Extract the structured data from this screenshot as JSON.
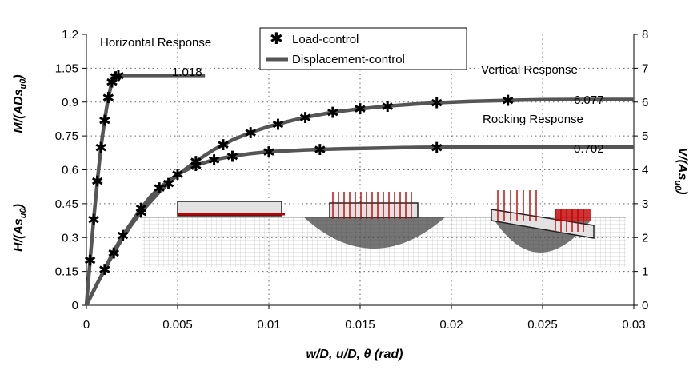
{
  "chart_data": {
    "type": "line",
    "xlabel": "w/D,  u/D,  θ (rad)",
    "ylabel_left_outer": "H/(As_u0)",
    "ylabel_left_inner": "M/(ADs_u0)",
    "ylabel_right": "V/(As_u0)",
    "xlim": [
      0,
      0.03
    ],
    "ylim_left": [
      0,
      1.2
    ],
    "ylim_right": [
      0,
      8
    ],
    "x_ticks": [
      "0",
      "0.005",
      "0.01",
      "0.015",
      "0.02",
      "0.025",
      "0.03"
    ],
    "y_left_ticks": [
      "0",
      "0.15",
      "0.3",
      "0.45",
      "0.6",
      "0.75",
      "0.9",
      "1.05",
      "1.2"
    ],
    "y_right_ticks": [
      "0",
      "1",
      "2",
      "3",
      "4",
      "5",
      "6",
      "7",
      "8"
    ],
    "grid": "dotted",
    "legend_position": "top-center",
    "legend": [
      {
        "label": "Load-control",
        "style": "asterisk"
      },
      {
        "label": "Displacement-control",
        "style": "thick-line"
      }
    ],
    "series": [
      {
        "name": "Horizontal Response",
        "annotation_value": "1.018",
        "axis": "left",
        "x": [
          0,
          0.0002,
          0.0004,
          0.0006,
          0.0008,
          0.001,
          0.0012,
          0.0014,
          0.0016,
          0.00175,
          0.002,
          0.003,
          0.004,
          0.005,
          0.006,
          0.0065
        ],
        "y": [
          0,
          0.2,
          0.38,
          0.55,
          0.7,
          0.82,
          0.92,
          0.99,
          1.012,
          1.018,
          1.018,
          1.018,
          1.018,
          1.018,
          1.018,
          1.018
        ]
      },
      {
        "name": "Vertical Response",
        "annotation_value": "6.077",
        "axis": "right",
        "x": [
          0,
          0.0005,
          0.001,
          0.0015,
          0.002,
          0.0025,
          0.003,
          0.004,
          0.005,
          0.006,
          0.007,
          0.008,
          0.009,
          0.01,
          0.011,
          0.012,
          0.0135,
          0.015,
          0.0165,
          0.018,
          0.0192,
          0.021,
          0.0231,
          0.025,
          0.027,
          0.029,
          0.03
        ],
        "y": [
          0,
          0.55,
          1.05,
          1.55,
          2.0,
          2.4,
          2.75,
          3.35,
          3.85,
          4.25,
          4.6,
          4.88,
          5.1,
          5.28,
          5.42,
          5.55,
          5.7,
          5.8,
          5.88,
          5.94,
          5.98,
          6.02,
          6.05,
          6.07,
          6.077,
          6.077,
          6.077
        ]
      },
      {
        "name": "Rocking Response",
        "annotation_value": "0.702",
        "axis": "left",
        "x": [
          0,
          0.0005,
          0.001,
          0.0015,
          0.002,
          0.0025,
          0.003,
          0.0035,
          0.004,
          0.005,
          0.006,
          0.007,
          0.008,
          0.009,
          0.01,
          0.012,
          0.014,
          0.016,
          0.018,
          0.0192,
          0.022,
          0.025,
          0.028,
          0.03
        ],
        "y": [
          0,
          0.08,
          0.16,
          0.24,
          0.31,
          0.37,
          0.43,
          0.48,
          0.52,
          0.58,
          0.62,
          0.645,
          0.66,
          0.672,
          0.68,
          0.688,
          0.693,
          0.696,
          0.699,
          0.7,
          0.701,
          0.702,
          0.702,
          0.702
        ]
      }
    ],
    "labels": {
      "horizontal": "Horizontal Response",
      "vertical": "Vertical Response",
      "rocking": "Rocking Response",
      "horizontal_value": "1.018",
      "vertical_value": "6.077",
      "rocking_value": "0.702"
    }
  }
}
